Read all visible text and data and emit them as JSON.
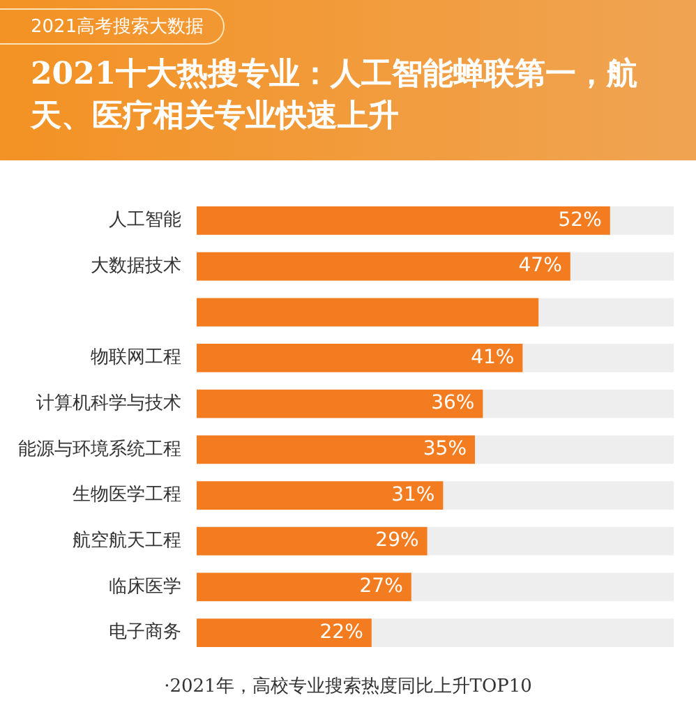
{
  "chart_data": {
    "type": "bar",
    "orientation": "horizontal",
    "subtitle": "2021高考搜索大数据",
    "title": "2021十大热搜专业：人工智能蝉联第一，航天、医疗相关专业快速上升",
    "categories": [
      "人工智能",
      "大数据技术",
      null,
      "物联网工程",
      "计算机科学与技术",
      "能源与环境系统工程",
      "生物医学工程",
      "航空航天工程",
      "临床医学",
      "电子商务"
    ],
    "values": [
      52,
      47,
      43,
      41,
      36,
      35,
      31,
      29,
      27,
      22
    ],
    "value_labels": [
      "52%",
      "47%",
      null,
      "41%",
      "36%",
      "35%",
      "31%",
      "29%",
      "27%",
      "22%"
    ],
    "color": "#f47c20",
    "xlim": [
      0,
      60
    ],
    "tick_labels": "y",
    "annotations": [
      "·2021年，高校专业搜索热度同比上升TOP10"
    ]
  }
}
